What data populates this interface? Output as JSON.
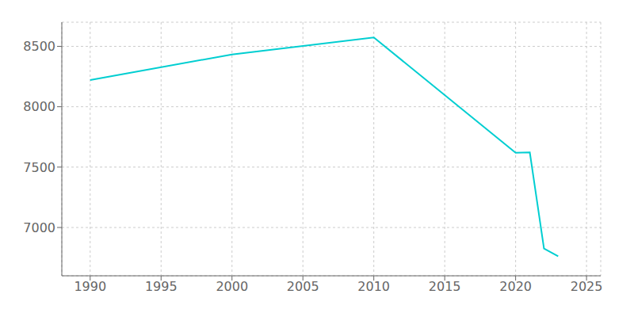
{
  "chart_data": {
    "type": "line",
    "x": [
      1990,
      2000,
      2010,
      2020,
      2021,
      2022,
      2023
    ],
    "values": [
      8221,
      8433,
      8574,
      7619,
      7622,
      6826,
      6762
    ],
    "color": "#00CED1",
    "xlim": [
      1988,
      2026
    ],
    "ylim": [
      6600,
      8700
    ],
    "xticks": [
      1990,
      1995,
      2000,
      2005,
      2010,
      2015,
      2020,
      2025
    ],
    "yticks": [
      7000,
      7500,
      8000,
      8500
    ],
    "grid": true
  }
}
